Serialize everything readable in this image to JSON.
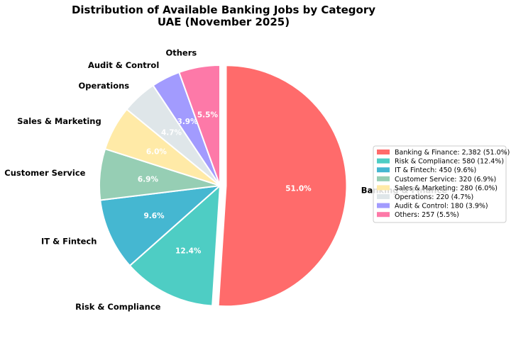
{
  "chart_data": {
    "type": "pie",
    "title_line1": "Distribution of Available Banking Jobs by Category",
    "title_line2": "UAE (November 2025)",
    "start_angle_deg": 90,
    "direction": "clockwise",
    "slices": [
      {
        "name": "Banking & Finance",
        "value": 2382,
        "percent": "51.0%",
        "color": "#FF6B6B",
        "explode": 0.05,
        "legend": "Banking & Finance: 2,382 (51.0%)"
      },
      {
        "name": "Risk & Compliance",
        "value": 580,
        "percent": "12.4%",
        "color": "#4ECDC4",
        "explode": 0,
        "legend": "Risk & Compliance: 580 (12.4%)"
      },
      {
        "name": "IT & Fintech",
        "value": 450,
        "percent": "9.6%",
        "color": "#45B7D1",
        "explode": 0,
        "legend": "IT & Fintech: 450 (9.6%)"
      },
      {
        "name": "Customer Service",
        "value": 320,
        "percent": "6.9%",
        "color": "#96CEB4",
        "explode": 0,
        "legend": "Customer Service: 320 (6.9%)"
      },
      {
        "name": "Sales & Marketing",
        "value": 280,
        "percent": "6.0%",
        "color": "#FFEAA7",
        "explode": 0,
        "legend": "Sales & Marketing: 280 (6.0%)"
      },
      {
        "name": "Operations",
        "value": 220,
        "percent": "4.7%",
        "color": "#DFE6E9",
        "explode": 0,
        "legend": "Operations: 220 (4.7%)"
      },
      {
        "name": "Audit & Control",
        "value": 180,
        "percent": "3.9%",
        "color": "#A29BFE",
        "explode": 0,
        "legend": "Audit & Control: 180 (3.9%)"
      },
      {
        "name": "Others",
        "value": 257,
        "percent": "5.5%",
        "color": "#FD79A8",
        "explode": 0,
        "legend": "Others: 257 (5.5%)"
      }
    ],
    "legend_position": "center-right"
  }
}
